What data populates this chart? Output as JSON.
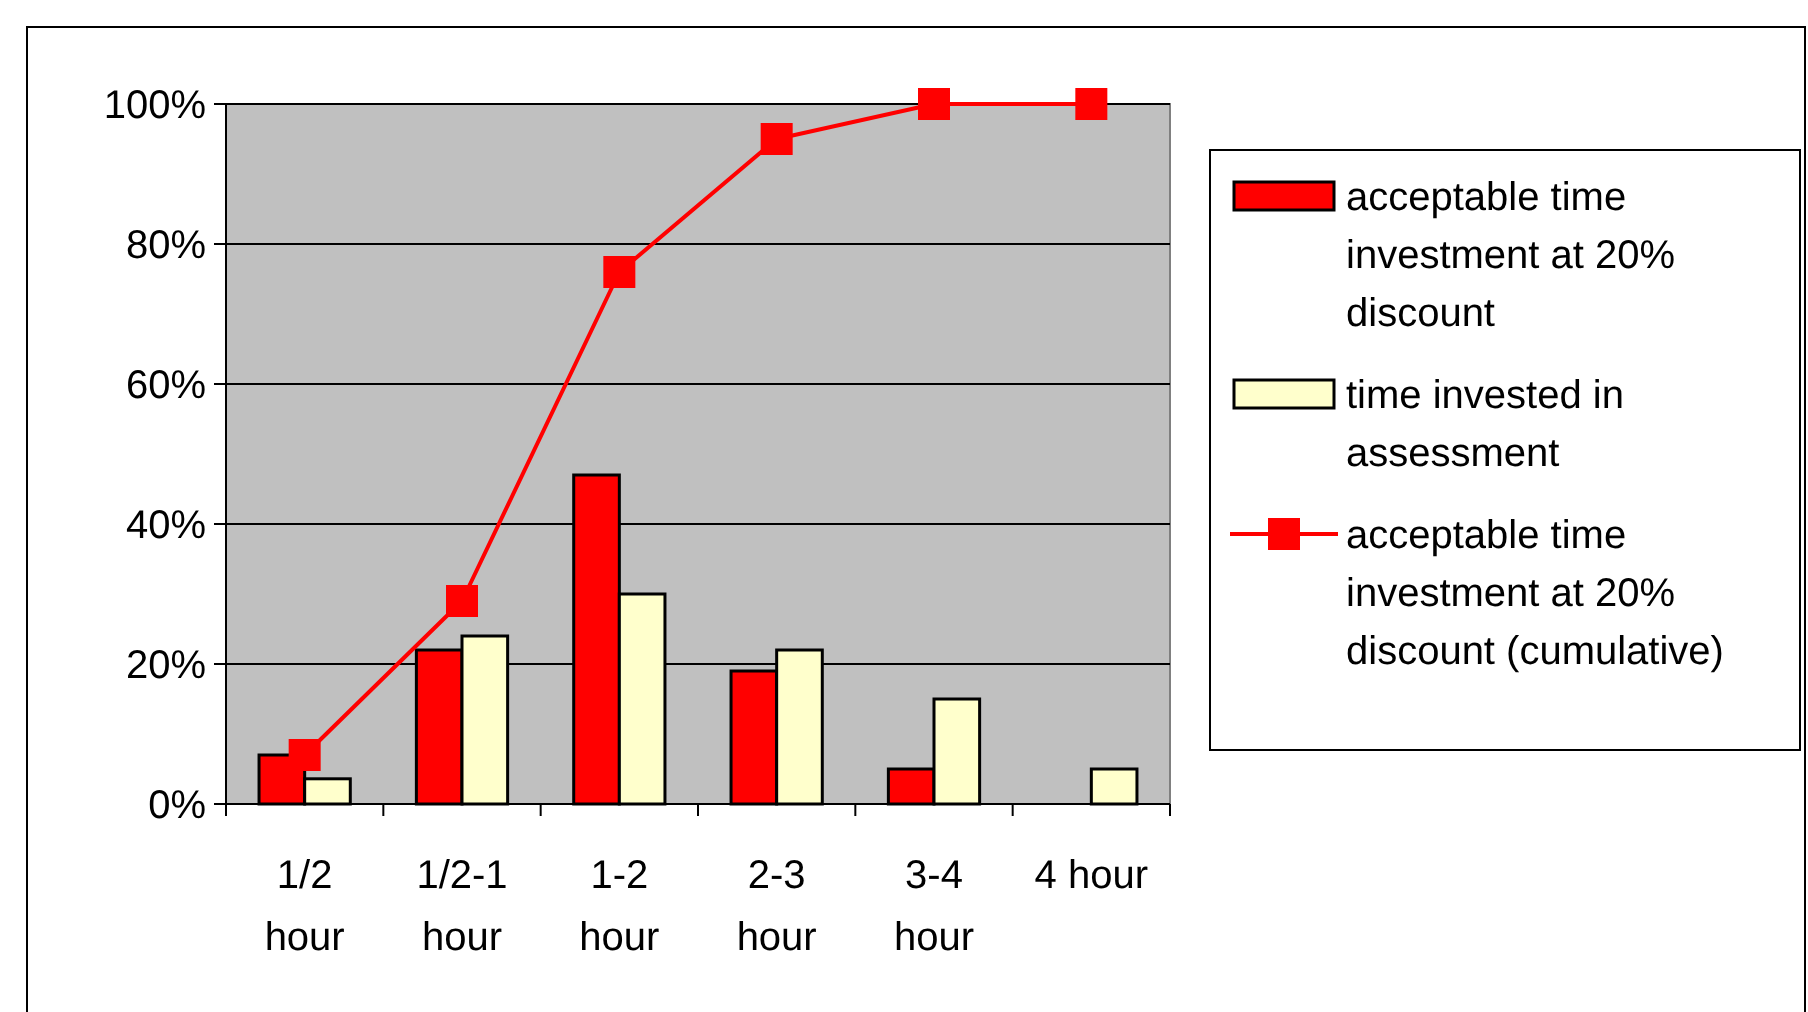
{
  "chart_data": {
    "type": "bar",
    "categories": [
      "1/2 hour",
      "1/2-1 hour",
      "1-2 hour",
      "2-3 hour",
      "3-4 hour",
      "4 hour"
    ],
    "series": [
      {
        "name": "acceptable time investment at 20% discount",
        "color": "#ff0000",
        "values": [
          7,
          22,
          47,
          19,
          5,
          0
        ]
      },
      {
        "name": "time invested in assessment",
        "color": "#ffffcc",
        "values": [
          3.6,
          24,
          30,
          22,
          15,
          5
        ]
      },
      {
        "name": "acceptable time investment at 20% discount (cumulative)",
        "type": "line",
        "color": "#ff0000",
        "values": [
          7,
          29,
          76,
          95,
          100,
          100
        ]
      }
    ],
    "ylim": [
      0,
      100
    ],
    "yticks": [
      {
        "value": 0,
        "label": "0%"
      },
      {
        "value": 20,
        "label": "20%"
      },
      {
        "value": 40,
        "label": "40%"
      },
      {
        "value": 60,
        "label": "60%"
      },
      {
        "value": 80,
        "label": "80%"
      },
      {
        "value": 100,
        "label": "100%"
      }
    ],
    "grid": "y",
    "legend": "right",
    "marker": "square"
  }
}
